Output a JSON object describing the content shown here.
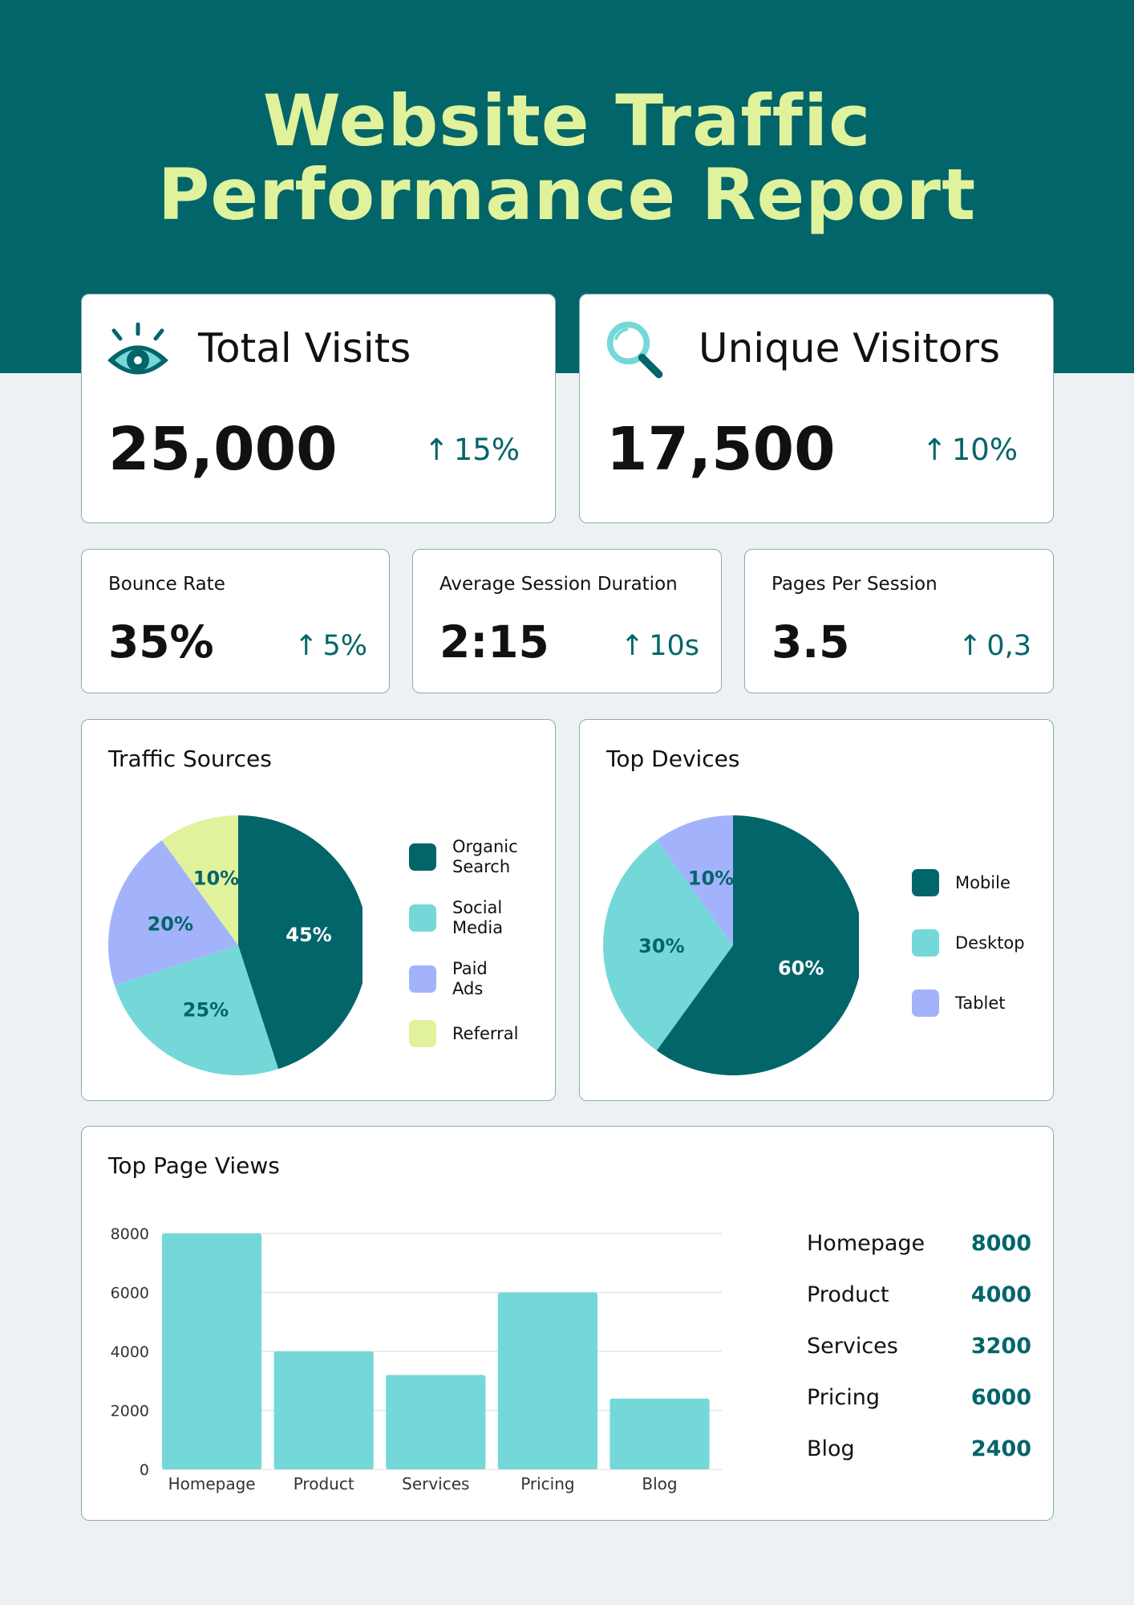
{
  "page": {
    "title_line1": "Website Traffic",
    "title_line2": "Performance Report"
  },
  "colors": {
    "header_bg": "#02656a",
    "title": "#e1f29c",
    "dark_teal": "#02656a",
    "light_teal": "#75d8d8",
    "periwinkle": "#a3b3fb",
    "lime": "#e1f29c"
  },
  "kpis": {
    "total_visits": {
      "icon": "eye-icon",
      "label": "Total Visits",
      "value": "25,000",
      "delta": "15%"
    },
    "unique_visitors": {
      "icon": "magnifier-icon",
      "label": "Unique Visitors",
      "value": "17,500",
      "delta": "10%"
    },
    "bounce_rate": {
      "label": "Bounce Rate",
      "value": "35%",
      "delta": "5%"
    },
    "avg_session": {
      "label": "Average Session Duration",
      "value": "2:15",
      "delta": "10s"
    },
    "pages_per_session": {
      "label": "Pages Per Session",
      "value": "3.5",
      "delta": "0,3"
    }
  },
  "chart_data": [
    {
      "type": "pie",
      "title": "Traffic Sources",
      "slices": [
        {
          "name": "Organic Search",
          "value": 45,
          "label": "45%",
          "color": "#02656a",
          "label_color": "#ffffff"
        },
        {
          "name": "Social Media",
          "value": 25,
          "label": "25%",
          "color": "#75d8d8",
          "label_color": "#02656a"
        },
        {
          "name": "Paid Ads",
          "value": 20,
          "label": "20%",
          "color": "#a3b3fb",
          "label_color": "#02656a"
        },
        {
          "name": "Referral",
          "value": 10,
          "label": "10%",
          "color": "#e1f29c",
          "label_color": "#02656a"
        }
      ],
      "legend": [
        {
          "line1": "Organic",
          "line2": "Search",
          "color": "#02656a"
        },
        {
          "line1": "Social",
          "line2": "Media",
          "color": "#75d8d8"
        },
        {
          "line1": "Paid",
          "line2": "Ads",
          "color": "#a3b3fb"
        },
        {
          "line1": "Referral",
          "line2": "",
          "color": "#e1f29c"
        }
      ]
    },
    {
      "type": "pie",
      "title": "Top Devices",
      "slices": [
        {
          "name": "Mobile",
          "value": 60,
          "label": "60%",
          "color": "#02656a",
          "label_color": "#ffffff"
        },
        {
          "name": "Desktop",
          "value": 30,
          "label": "30%",
          "color": "#75d8d8",
          "label_color": "#02656a"
        },
        {
          "name": "Tablet",
          "value": 10,
          "label": "10%",
          "color": "#a3b3fb",
          "label_color": "#02656a"
        }
      ],
      "legend": [
        {
          "line1": "Mobile",
          "line2": "",
          "color": "#02656a"
        },
        {
          "line1": "Desktop",
          "line2": "",
          "color": "#75d8d8"
        },
        {
          "line1": "Tablet",
          "line2": "",
          "color": "#a3b3fb"
        }
      ]
    },
    {
      "type": "bar",
      "title": "Top Page Views",
      "categories": [
        "Homepage",
        "Product",
        "Services",
        "Pricing",
        "Blog"
      ],
      "values": [
        8000,
        4000,
        3200,
        6000,
        2400
      ],
      "yticks": [
        "0",
        "2000",
        "4000",
        "6000",
        "8000"
      ],
      "ylim": [
        0,
        8000
      ],
      "color": "#75d8d8",
      "table": [
        {
          "label": "Homepage",
          "value": "8000"
        },
        {
          "label": "Product",
          "value": "4000"
        },
        {
          "label": "Services",
          "value": "3200"
        },
        {
          "label": "Pricing",
          "value": "6000"
        },
        {
          "label": "Blog",
          "value": "2400"
        }
      ]
    }
  ]
}
